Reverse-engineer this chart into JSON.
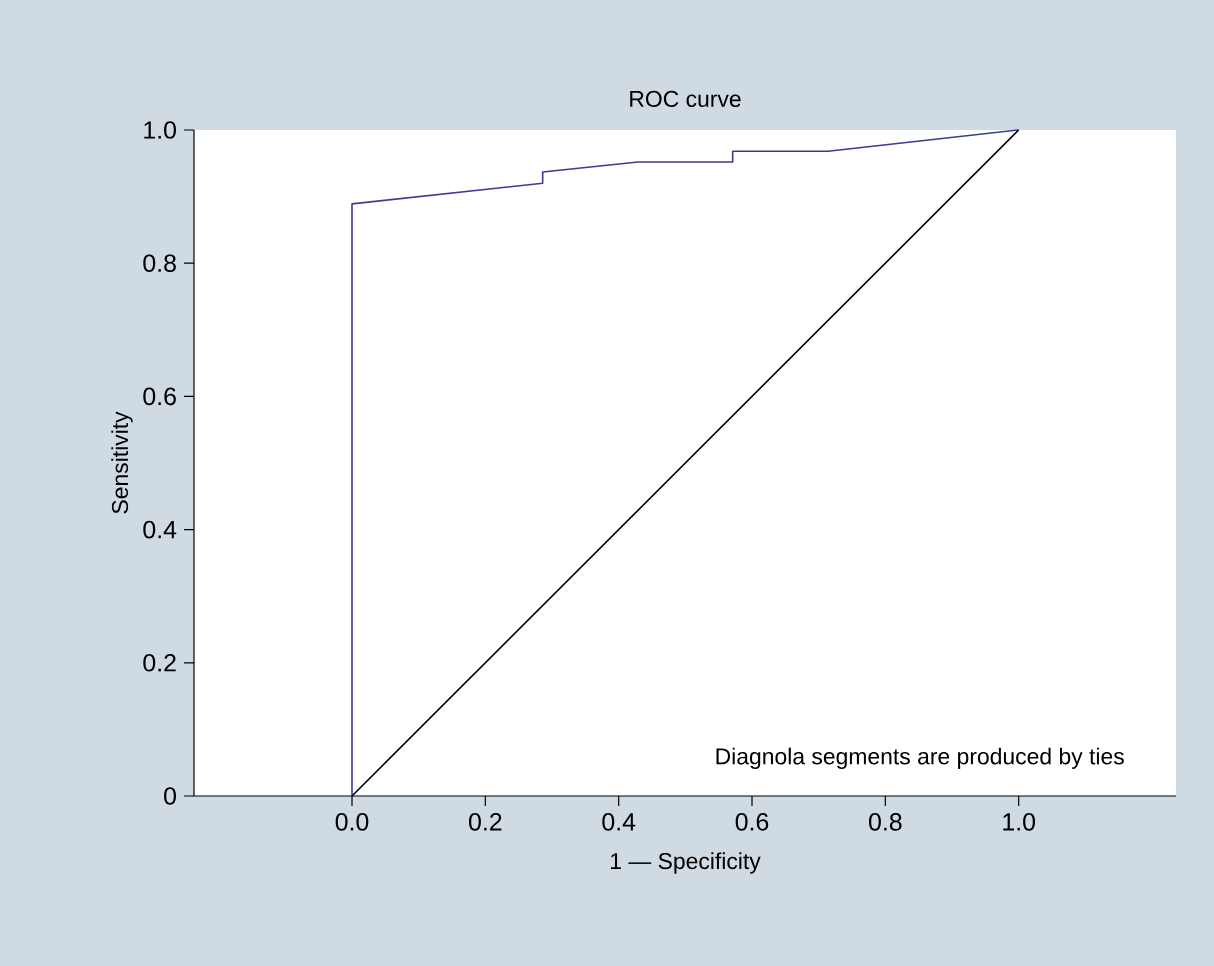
{
  "chart_data": {
    "type": "line",
    "title": "ROC curve",
    "xlabel": "1 — Specificity",
    "ylabel": "Sensitivity",
    "annotations": [
      "Diagnola segments are produced by ties"
    ],
    "series": [
      {
        "color": "#3f3a8f",
        "x": [
          0,
          0,
          0.286,
          0.286,
          0.429,
          0.571,
          0.571,
          0.714,
          1
        ],
        "values": [
          0,
          0.889,
          0.92,
          0.937,
          0.952,
          0.952,
          0.968,
          0.968,
          1
        ]
      },
      {
        "color": "#000000",
        "x": [
          0,
          1
        ],
        "values": [
          0,
          1
        ]
      }
    ],
    "xlim": [
      -0.237,
      1.236
    ],
    "ylim": [
      0,
      1
    ],
    "xticks": [
      {
        "value": 0,
        "label": "0.0"
      },
      0.2,
      0.4,
      0.6,
      0.8,
      {
        "value": 1,
        "label": "1.0"
      }
    ],
    "yticks": [
      0,
      0.2,
      0.4,
      0.6,
      0.8,
      {
        "value": 1,
        "label": "1.0"
      }
    ],
    "grid": false,
    "marker": "none",
    "line_style": "solid"
  }
}
